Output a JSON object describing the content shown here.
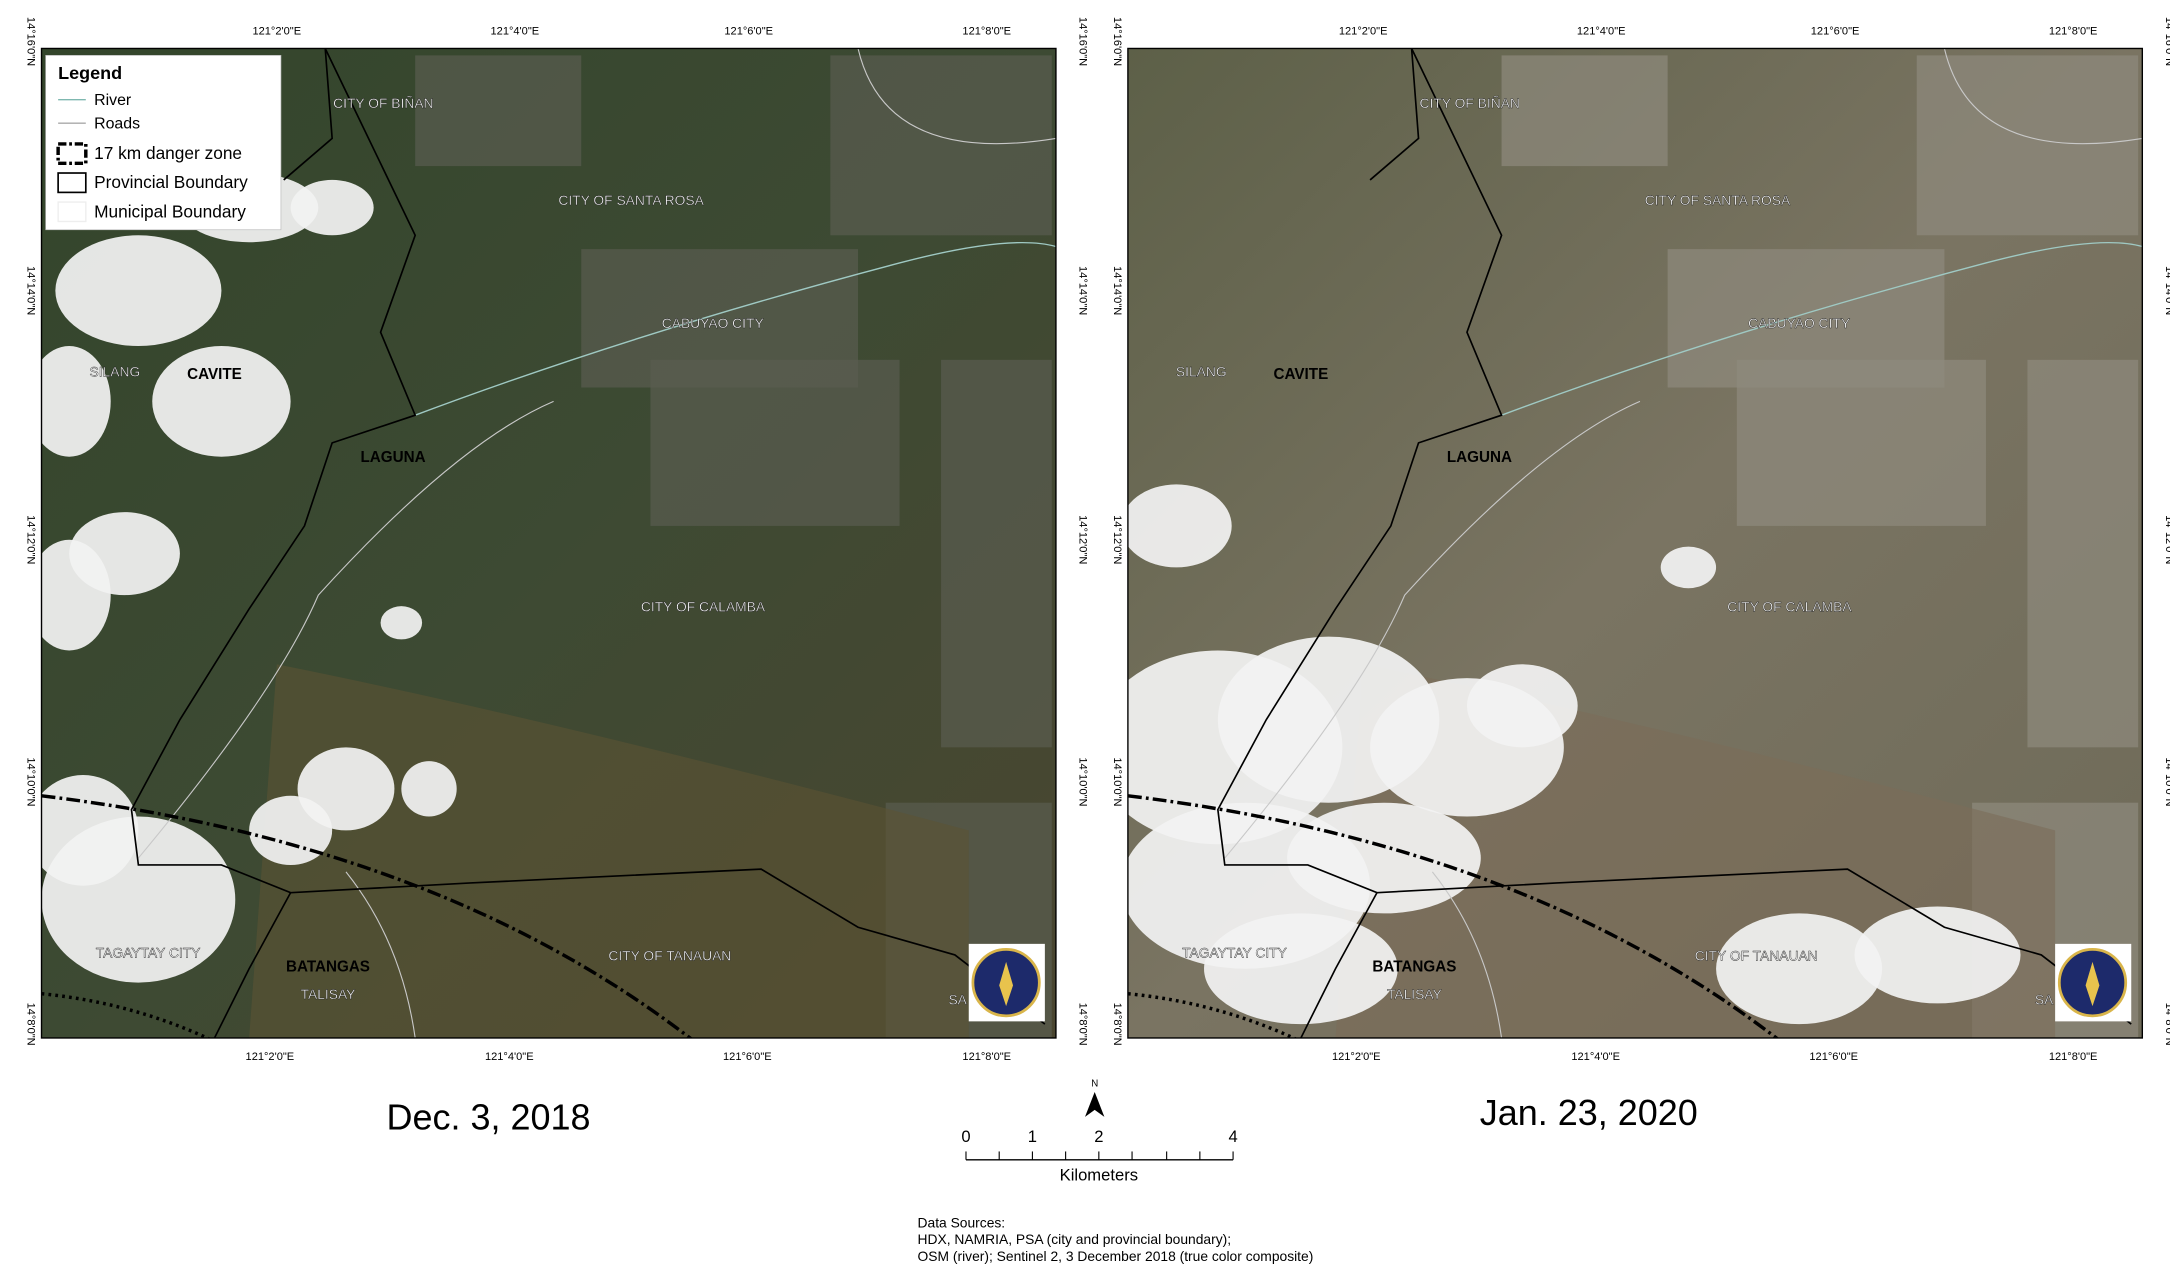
{
  "legend": {
    "title": "Legend",
    "items": [
      "River",
      "Roads",
      "17 km danger zone",
      "Provincial Boundary",
      "Municipal Boundary"
    ]
  },
  "maps": [
    {
      "date": "Dec. 3, 2018"
    },
    {
      "date": "Jan. 23, 2020"
    }
  ],
  "longitude_labels": [
    "121°2'0\"E",
    "121°4'0\"E",
    "121°6'0\"E",
    "121°8'0\"E"
  ],
  "latitude_labels": [
    "14°16'0\"N",
    "14°14'0\"N",
    "14°12'0\"N",
    "14°10'0\"N",
    "14°8'0\"N"
  ],
  "place_labels": [
    "CITY OF BIÑAN",
    "CITY OF SANTA ROSA",
    "CABUYAO CITY",
    "SILANG",
    "CAVITE",
    "LAGUNA",
    "CITY OF CALAMBA",
    "TAGAYTAY CITY",
    "BATANGAS",
    "TALISAY",
    "CITY OF TANAUAN",
    "SA"
  ],
  "north_arrow": "N",
  "scale_bar": {
    "ticks": [
      0,
      1,
      2,
      4
    ],
    "unit": "Kilometers"
  },
  "data_sources": [
    "Data Sources:",
    "HDX, NAMRIA, PSA (city and provincial boundary);",
    "OSM (river); Sentinel 2, 3 December 2018 (true color composite)"
  ]
}
